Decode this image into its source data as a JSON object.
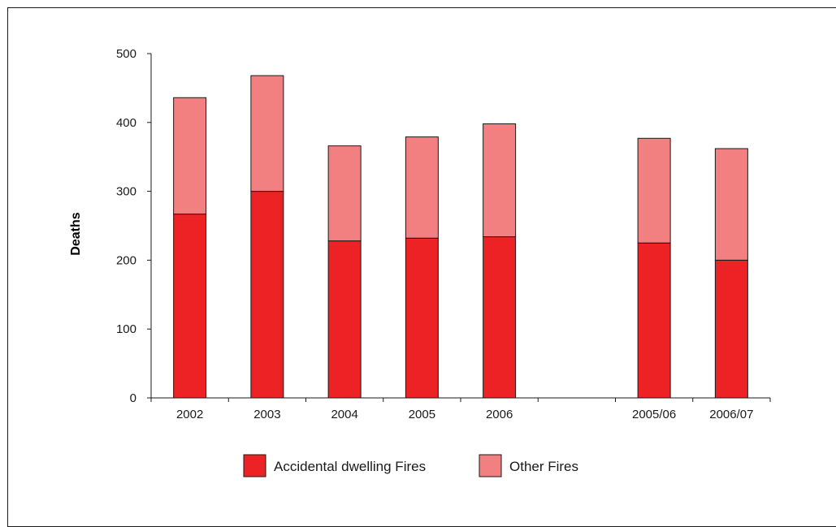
{
  "chart_data": {
    "type": "bar",
    "stacked": true,
    "categories": [
      "2002",
      "2003",
      "2004",
      "2005",
      "2006",
      "",
      "2005/06",
      "2006/07"
    ],
    "series": [
      {
        "name": "Accidental dwelling Fires",
        "color": "#ed2224",
        "values": [
          267,
          300,
          228,
          232,
          234,
          null,
          225,
          200
        ]
      },
      {
        "name": "Other Fires",
        "color": "#f28080",
        "values": [
          169,
          168,
          138,
          147,
          164,
          null,
          152,
          162
        ]
      }
    ],
    "title": "",
    "xlabel": "",
    "ylabel": "Deaths",
    "ylim": [
      0,
      500
    ],
    "yticks": [
      "0",
      "100",
      "200",
      "300",
      "400",
      "500"
    ],
    "grid": false,
    "legend_position": "bottom"
  }
}
